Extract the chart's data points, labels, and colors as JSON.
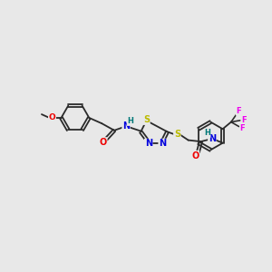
{
  "bg_color": "#e8e8e8",
  "bond_color": "#2a2a2a",
  "bond_lw": 1.3,
  "double_off": 2.0,
  "atom_colors": {
    "O": "#ee0000",
    "N": "#0000dd",
    "S": "#bbbb00",
    "F": "#ee00ee",
    "H": "#007777",
    "C": "#2a2a2a"
  },
  "fs": 6.0,
  "fig_w": 3.0,
  "fig_h": 3.0,
  "dpi": 100,
  "xlim": [
    0,
    300
  ],
  "ylim": [
    0,
    300
  ]
}
